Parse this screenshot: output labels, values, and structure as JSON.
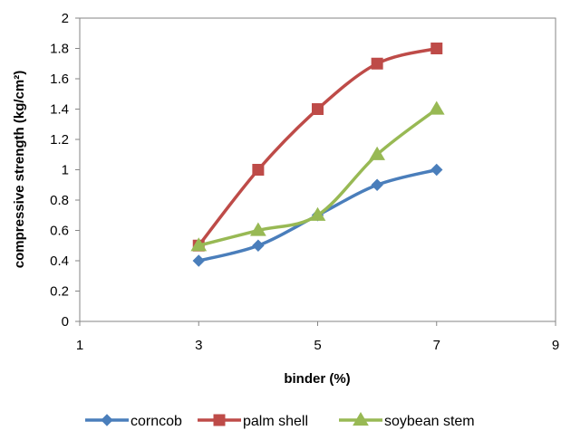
{
  "chart_data": {
    "type": "line",
    "title": "",
    "xlabel": "binder (%)",
    "ylabel": "compressive strength  (kg/cm²)",
    "xlim": [
      1,
      9
    ],
    "ylim": [
      0,
      2
    ],
    "xticks": [
      1,
      3,
      5,
      7,
      9
    ],
    "yticks": [
      0,
      0.2,
      0.4,
      0.6,
      0.8,
      1,
      1.2,
      1.4,
      1.6,
      1.8,
      2
    ],
    "xtick_labels": [
      "1",
      "3",
      "5",
      "7",
      "9"
    ],
    "ytick_labels": [
      "0",
      "0.2",
      "0.4",
      "0.6",
      "0.8",
      "1",
      "1.2",
      "1.4",
      "1.6",
      "1.8",
      "2"
    ],
    "grid": false,
    "legend_position": "bottom",
    "smooth": true,
    "series": [
      {
        "name": "corncob",
        "color": "#4A7EBB",
        "marker": "diamond",
        "x": [
          3,
          4,
          5,
          6,
          7
        ],
        "y": [
          0.4,
          0.5,
          0.7,
          0.9,
          1.0
        ]
      },
      {
        "name": "palm shell",
        "color": "#BE4B48",
        "marker": "square",
        "x": [
          3,
          4,
          5,
          6,
          7
        ],
        "y": [
          0.5,
          1.0,
          1.4,
          1.7,
          1.8
        ]
      },
      {
        "name": "soybean stem",
        "color": "#98B954",
        "marker": "triangle",
        "x": [
          3,
          4,
          5,
          6,
          7
        ],
        "y": [
          0.5,
          0.6,
          0.7,
          1.1,
          1.4
        ]
      }
    ]
  }
}
